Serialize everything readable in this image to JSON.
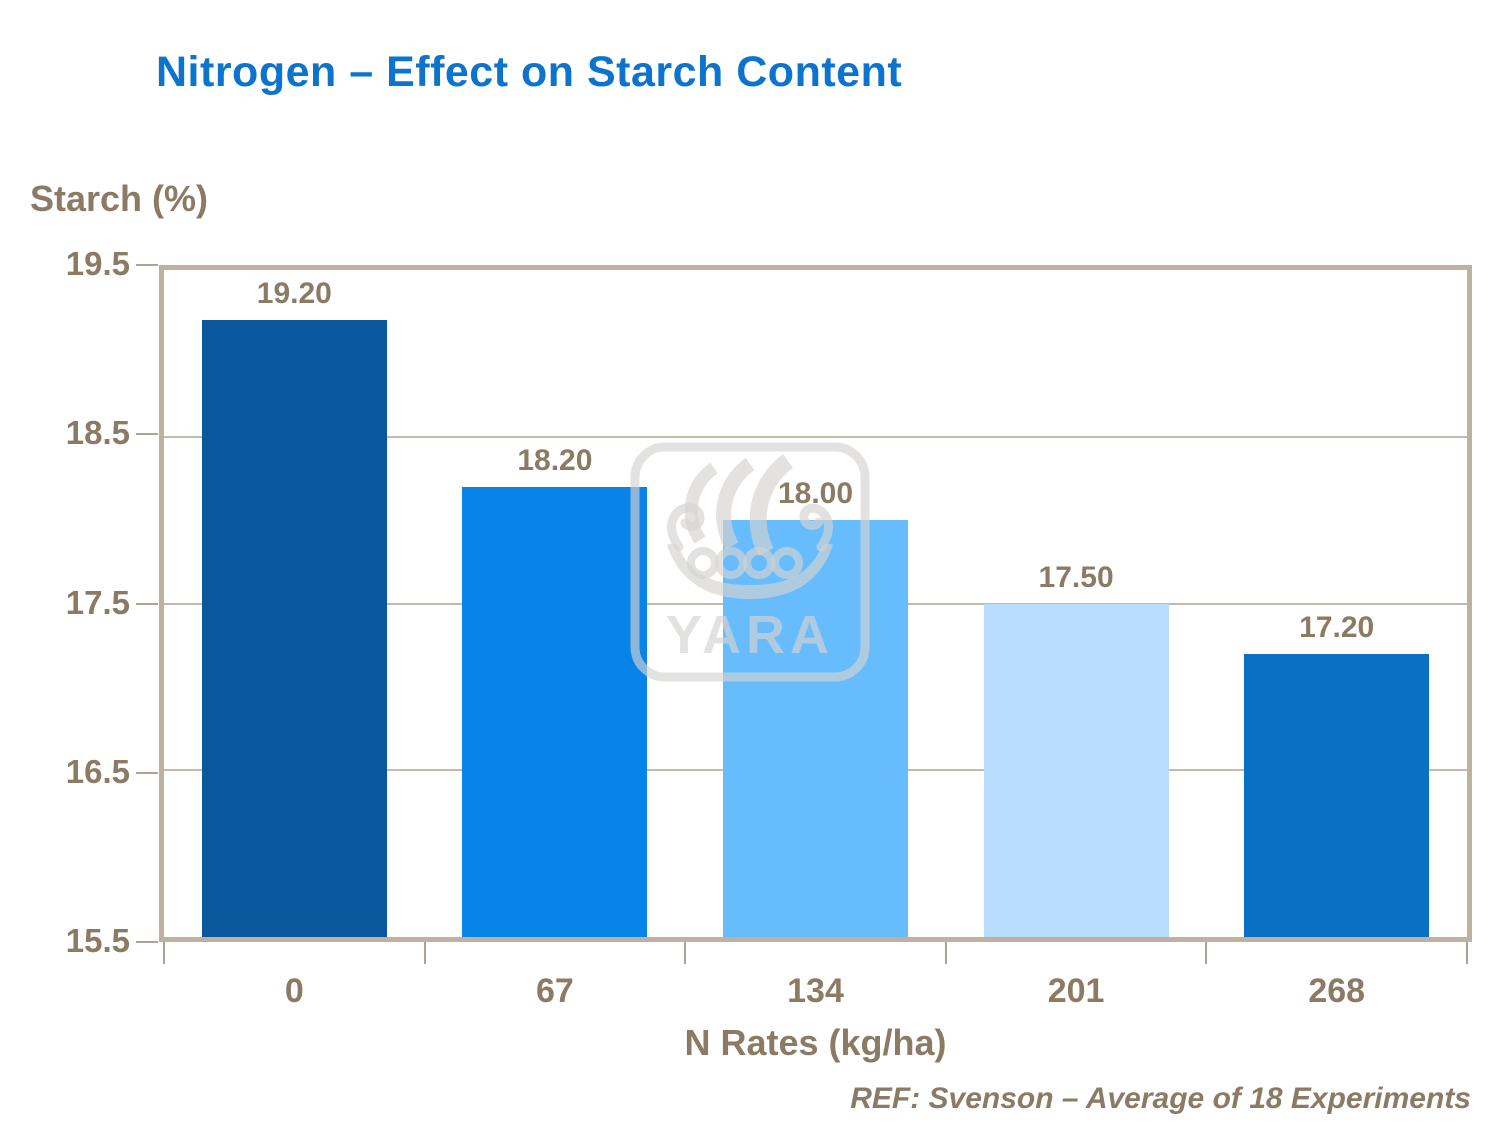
{
  "slide": {
    "title": "Nitrogen – Effect on Starch Content",
    "ref_note": "REF: Svenson – Average of 18 Experiments",
    "watermark_text": "YARA"
  },
  "chart_data": {
    "type": "bar",
    "title": "Nitrogen – Effect on Starch Content",
    "categories": [
      "0",
      "67",
      "134",
      "201",
      "268"
    ],
    "values": [
      19.2,
      18.2,
      18.0,
      17.5,
      17.2
    ],
    "value_labels": [
      "19.20",
      "18.20",
      "18.00",
      "17.50",
      "17.20"
    ],
    "xlabel": "N Rates (kg/ha)",
    "ylabel": "Starch (%)",
    "ylim": [
      15.5,
      19.5
    ],
    "yticks": [
      19.5,
      18.5,
      17.5,
      16.5,
      15.5
    ],
    "ytick_labels": [
      "19.5",
      "18.5",
      "17.5",
      "16.5",
      "15.5"
    ],
    "grid": true,
    "legend": false,
    "bar_colors": [
      "#09579c",
      "#0883e8",
      "#67bcfe",
      "#b8dcfb",
      "#0a70c1"
    ],
    "colors": {
      "title_blue": "#0c74cc",
      "axis_text_brown": "#8b7b65",
      "gridline": "#c5b9aa",
      "frame": "#beb1a1",
      "tick": "#afa294",
      "watermark": "rgba(214,211,207,0.65)"
    }
  }
}
